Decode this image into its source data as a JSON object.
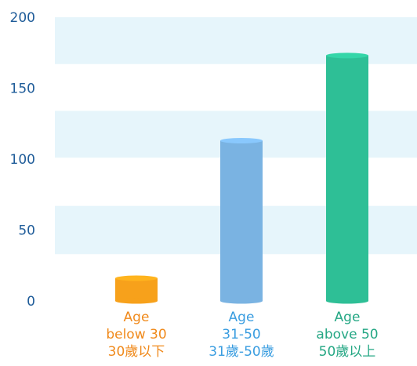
{
  "chart_data": {
    "type": "bar",
    "categories": [
      [
        "Age",
        "below 30",
        "30歲以下"
      ],
      [
        "Age",
        "31-50",
        "31歲-50歲"
      ],
      [
        "Age",
        "above 50",
        "50歲以上"
      ]
    ],
    "values": [
      16,
      113,
      173
    ],
    "ylim": [
      0,
      200
    ],
    "yticks": [
      0,
      50,
      100,
      150,
      200
    ],
    "grid": "alternating horizontal bands",
    "colors": {
      "bars": [
        "#f7a11b",
        "#7ab3e2",
        "#2ebf96"
      ],
      "labels": [
        "#f08a1c",
        "#3a9de0",
        "#25a784"
      ],
      "band": "#e6f5fb",
      "tick": "#1f5c99"
    }
  }
}
